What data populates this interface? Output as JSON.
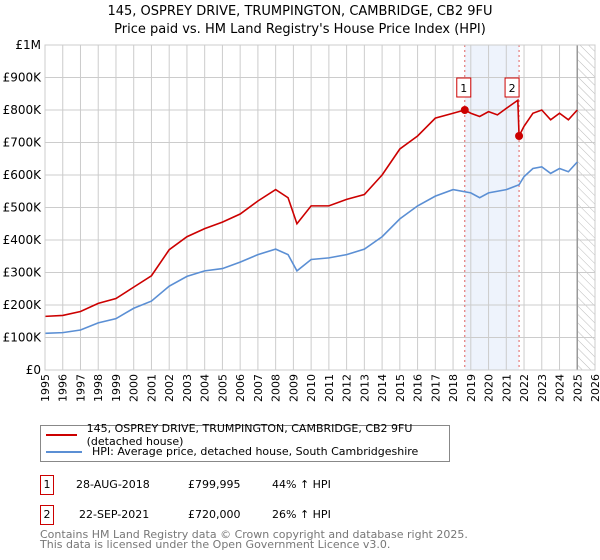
{
  "chart_data": {
    "type": "line",
    "title": "145, OSPREY DRIVE, TRUMPINGTON, CAMBRIDGE, CB2 9FU",
    "subtitle": "Price paid vs. HM Land Registry's House Price Index (HPI)",
    "xlim": [
      1995,
      2026
    ],
    "ylim": [
      0,
      1000000
    ],
    "x_ticks": [
      "1995",
      "1996",
      "1997",
      "1998",
      "1999",
      "2000",
      "2001",
      "2002",
      "2003",
      "2004",
      "2005",
      "2006",
      "2007",
      "2008",
      "2009",
      "2010",
      "2011",
      "2012",
      "2013",
      "2014",
      "2015",
      "2016",
      "2017",
      "2018",
      "2019",
      "2020",
      "2021",
      "2022",
      "2023",
      "2024",
      "2025",
      "2026"
    ],
    "y_ticks": [
      {
        "v": 0,
        "label": "£0"
      },
      {
        "v": 100000,
        "label": "£100K"
      },
      {
        "v": 200000,
        "label": "£200K"
      },
      {
        "v": 300000,
        "label": "£300K"
      },
      {
        "v": 400000,
        "label": "£400K"
      },
      {
        "v": 500000,
        "label": "£500K"
      },
      {
        "v": 600000,
        "label": "£600K"
      },
      {
        "v": 700000,
        "label": "£700K"
      },
      {
        "v": 800000,
        "label": "£800K"
      },
      {
        "v": 900000,
        "label": "£900K"
      },
      {
        "v": 1000000,
        "label": "£1M"
      }
    ],
    "grid": true,
    "series": [
      {
        "name": "145, OSPREY DRIVE, TRUMPINGTON, CAMBRIDGE, CB2 9FU (detached house)",
        "color": "#cc0000",
        "x": [
          1995,
          1996,
          1997,
          1998,
          1999,
          2000,
          2001,
          2002,
          2003,
          2004,
          2005,
          2006,
          2007,
          2008,
          2008.7,
          2009.2,
          2010,
          2011,
          2012,
          2013,
          2014,
          2015,
          2016,
          2017,
          2018,
          2018.66,
          2019,
          2019.5,
          2020,
          2020.5,
          2021,
          2021.65,
          2021.72,
          2022,
          2022.5,
          2023,
          2023.5,
          2024,
          2024.5,
          2025
        ],
        "y": [
          165000,
          168000,
          180000,
          205000,
          220000,
          255000,
          290000,
          370000,
          410000,
          435000,
          455000,
          480000,
          520000,
          555000,
          530000,
          450000,
          505000,
          505000,
          525000,
          540000,
          600000,
          680000,
          720000,
          775000,
          790000,
          799995,
          790000,
          780000,
          795000,
          785000,
          805000,
          830000,
          720000,
          750000,
          790000,
          800000,
          770000,
          790000,
          770000,
          800000
        ]
      },
      {
        "name": "HPI: Average price, detached house, South Cambridgeshire",
        "color": "#5b8fd4",
        "x": [
          1995,
          1996,
          1997,
          1998,
          1999,
          2000,
          2001,
          2002,
          2003,
          2004,
          2005,
          2006,
          2007,
          2008,
          2008.7,
          2009.2,
          2010,
          2011,
          2012,
          2013,
          2014,
          2015,
          2016,
          2017,
          2018,
          2019,
          2019.5,
          2020,
          2021,
          2021.72,
          2022,
          2022.5,
          2023,
          2023.5,
          2024,
          2024.5,
          2025
        ],
        "y": [
          113000,
          115000,
          123000,
          145000,
          158000,
          190000,
          212000,
          258000,
          288000,
          305000,
          312000,
          332000,
          355000,
          372000,
          355000,
          305000,
          340000,
          345000,
          355000,
          372000,
          410000,
          465000,
          505000,
          535000,
          555000,
          545000,
          530000,
          545000,
          555000,
          570000,
          595000,
          620000,
          625000,
          605000,
          620000,
          610000,
          640000
        ]
      }
    ],
    "sales": [
      {
        "label": "1",
        "x": 2018.66,
        "y": 799995,
        "date": "28-AUG-2018",
        "price": "£799,995",
        "hpi": "44% ↑ HPI"
      },
      {
        "label": "2",
        "x": 2021.72,
        "y": 720000,
        "date": "22-SEP-2021",
        "price": "£720,000",
        "hpi": "26% ↑ HPI"
      }
    ],
    "hatch_from": 2025.0
  },
  "legend": {
    "red": "145, OSPREY DRIVE, TRUMPINGTON, CAMBRIDGE, CB2 9FU (detached house)",
    "blue": "HPI: Average price, detached house, South Cambridgeshire"
  },
  "footer": {
    "line1": "Contains HM Land Registry data © Crown copyright and database right 2025.",
    "line2": "This data is licensed under the Open Government Licence v3.0."
  }
}
